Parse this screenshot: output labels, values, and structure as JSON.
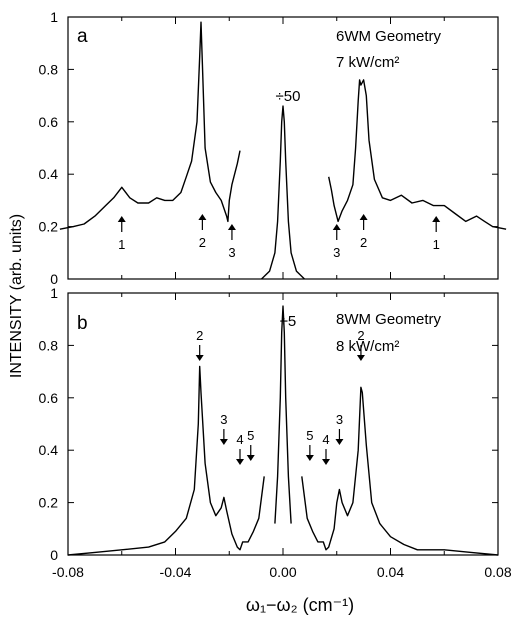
{
  "chart_data": [
    {
      "panel": "a",
      "type": "line",
      "annotation_lines": [
        "6WM Geometry",
        "7 kW/cm²"
      ],
      "scale_note": "÷50",
      "xlim": [
        -0.08,
        0.08
      ],
      "ylim": [
        0,
        1
      ],
      "yticks": [
        "0",
        "0.2",
        "0.4",
        "0.6",
        "0.8",
        "1"
      ],
      "show_xtick_labels": false,
      "segments": [
        [
          [
            -0.083,
            0.19
          ],
          [
            -0.078,
            0.2
          ],
          [
            -0.074,
            0.21
          ],
          [
            -0.07,
            0.24
          ],
          [
            -0.066,
            0.28
          ],
          [
            -0.063,
            0.31
          ],
          [
            -0.06,
            0.35
          ],
          [
            -0.057,
            0.31
          ],
          [
            -0.054,
            0.29
          ],
          [
            -0.05,
            0.29
          ],
          [
            -0.047,
            0.31
          ],
          [
            -0.044,
            0.3
          ],
          [
            -0.041,
            0.3
          ],
          [
            -0.038,
            0.33
          ],
          [
            -0.036,
            0.39
          ],
          [
            -0.034,
            0.45
          ],
          [
            -0.032,
            0.6
          ],
          [
            -0.031,
            0.85
          ],
          [
            -0.0305,
            0.98
          ],
          [
            -0.03,
            0.82
          ],
          [
            -0.029,
            0.5
          ],
          [
            -0.027,
            0.37
          ],
          [
            -0.025,
            0.33
          ],
          [
            -0.023,
            0.3
          ],
          [
            -0.021,
            0.24
          ],
          [
            -0.0205,
            0.22
          ],
          [
            -0.02,
            0.3
          ],
          [
            -0.019,
            0.36
          ],
          [
            -0.017,
            0.44
          ],
          [
            -0.016,
            0.49
          ]
        ],
        [
          [
            -0.008,
            0.0
          ],
          [
            -0.005,
            0.03
          ],
          [
            -0.003,
            0.1
          ],
          [
            -0.002,
            0.22
          ],
          [
            -0.001,
            0.45
          ],
          [
            -0.0005,
            0.6
          ],
          [
            0.0,
            0.66
          ],
          [
            0.0005,
            0.6
          ],
          [
            0.001,
            0.45
          ],
          [
            0.002,
            0.22
          ],
          [
            0.003,
            0.1
          ],
          [
            0.005,
            0.03
          ],
          [
            0.008,
            0.0
          ]
        ],
        [
          [
            0.017,
            0.39
          ],
          [
            0.018,
            0.34
          ],
          [
            0.019,
            0.28
          ],
          [
            0.0205,
            0.22
          ],
          [
            0.022,
            0.26
          ],
          [
            0.024,
            0.3
          ],
          [
            0.026,
            0.36
          ],
          [
            0.027,
            0.5
          ],
          [
            0.028,
            0.68
          ],
          [
            0.0285,
            0.76
          ],
          [
            0.029,
            0.74
          ],
          [
            0.03,
            0.76
          ],
          [
            0.031,
            0.7
          ],
          [
            0.032,
            0.53
          ],
          [
            0.034,
            0.38
          ],
          [
            0.037,
            0.31
          ],
          [
            0.04,
            0.3
          ],
          [
            0.044,
            0.32
          ],
          [
            0.048,
            0.29
          ],
          [
            0.052,
            0.3
          ],
          [
            0.056,
            0.28
          ],
          [
            0.06,
            0.28
          ],
          [
            0.064,
            0.25
          ],
          [
            0.068,
            0.22
          ],
          [
            0.072,
            0.24
          ],
          [
            0.075,
            0.22
          ],
          [
            0.078,
            0.2
          ],
          [
            0.083,
            0.19
          ]
        ]
      ],
      "peak_markers": [
        {
          "label": "1",
          "x": -0.06,
          "dir": "up"
        },
        {
          "label": "2",
          "x": -0.03,
          "dir": "up"
        },
        {
          "label": "3",
          "x": -0.019,
          "dir": "up"
        },
        {
          "label": "3",
          "x": 0.02,
          "dir": "up"
        },
        {
          "label": "2",
          "x": 0.03,
          "dir": "up"
        },
        {
          "label": "1",
          "x": 0.057,
          "dir": "up"
        }
      ]
    },
    {
      "panel": "b",
      "type": "line",
      "annotation_lines": [
        "8WM Geometry",
        "8 kW/cm²"
      ],
      "scale_note": "÷5",
      "xlim": [
        -0.08,
        0.08
      ],
      "ylim": [
        0,
        1
      ],
      "yticks": [
        "0",
        "0.2",
        "0.4",
        "0.6",
        "0.8",
        "1"
      ],
      "xticks": [
        "-0.08",
        "-0.04",
        "0.00",
        "0.04",
        "0.08"
      ],
      "xtick_values": [
        -0.08,
        -0.04,
        0.0,
        0.04,
        0.08
      ],
      "segments": [
        [
          [
            -0.08,
            0.0
          ],
          [
            -0.07,
            0.01
          ],
          [
            -0.06,
            0.02
          ],
          [
            -0.05,
            0.03
          ],
          [
            -0.044,
            0.05
          ],
          [
            -0.04,
            0.09
          ],
          [
            -0.036,
            0.14
          ],
          [
            -0.033,
            0.25
          ],
          [
            -0.0315,
            0.5
          ],
          [
            -0.031,
            0.72
          ],
          [
            -0.0305,
            0.62
          ],
          [
            -0.029,
            0.35
          ],
          [
            -0.027,
            0.2
          ],
          [
            -0.025,
            0.15
          ],
          [
            -0.023,
            0.18
          ],
          [
            -0.022,
            0.22
          ],
          [
            -0.021,
            0.17
          ],
          [
            -0.019,
            0.08
          ],
          [
            -0.017,
            0.03
          ],
          [
            -0.016,
            0.02
          ],
          [
            -0.015,
            0.05
          ],
          [
            -0.013,
            0.05
          ],
          [
            -0.011,
            0.09
          ],
          [
            -0.009,
            0.14
          ],
          [
            -0.007,
            0.3
          ]
        ],
        [
          [
            -0.003,
            0.12
          ],
          [
            -0.002,
            0.3
          ],
          [
            -0.001,
            0.6
          ],
          [
            -0.0005,
            0.85
          ],
          [
            0.0,
            0.95
          ],
          [
            0.0005,
            0.85
          ],
          [
            0.001,
            0.6
          ],
          [
            0.002,
            0.3
          ],
          [
            0.003,
            0.12
          ]
        ],
        [
          [
            0.007,
            0.3
          ],
          [
            0.009,
            0.14
          ],
          [
            0.011,
            0.09
          ],
          [
            0.013,
            0.05
          ],
          [
            0.015,
            0.05
          ],
          [
            0.016,
            0.02
          ],
          [
            0.017,
            0.03
          ],
          [
            0.019,
            0.1
          ],
          [
            0.02,
            0.2
          ],
          [
            0.021,
            0.25
          ],
          [
            0.022,
            0.2
          ],
          [
            0.024,
            0.15
          ],
          [
            0.026,
            0.2
          ],
          [
            0.028,
            0.4
          ],
          [
            0.029,
            0.64
          ],
          [
            0.0295,
            0.62
          ],
          [
            0.031,
            0.42
          ],
          [
            0.033,
            0.2
          ],
          [
            0.036,
            0.12
          ],
          [
            0.04,
            0.07
          ],
          [
            0.045,
            0.04
          ],
          [
            0.05,
            0.02
          ],
          [
            0.06,
            0.02
          ],
          [
            0.07,
            0.01
          ],
          [
            0.08,
            0.0
          ]
        ]
      ],
      "peak_markers": [
        {
          "label": "2",
          "x": -0.031,
          "dir": "down"
        },
        {
          "label": "3",
          "x": -0.022,
          "dir": "down"
        },
        {
          "label": "4",
          "x": -0.016,
          "dir": "down"
        },
        {
          "label": "5",
          "x": -0.012,
          "dir": "down"
        },
        {
          "label": "5",
          "x": 0.01,
          "dir": "down"
        },
        {
          "label": "4",
          "x": 0.016,
          "dir": "down"
        },
        {
          "label": "3",
          "x": 0.021,
          "dir": "down"
        },
        {
          "label": "2",
          "x": 0.029,
          "dir": "down"
        }
      ]
    }
  ],
  "axes": {
    "ylabel": "INTENSITY (arb. units)",
    "xlabel": "ω₁−ω₂ (cm⁻¹)"
  }
}
